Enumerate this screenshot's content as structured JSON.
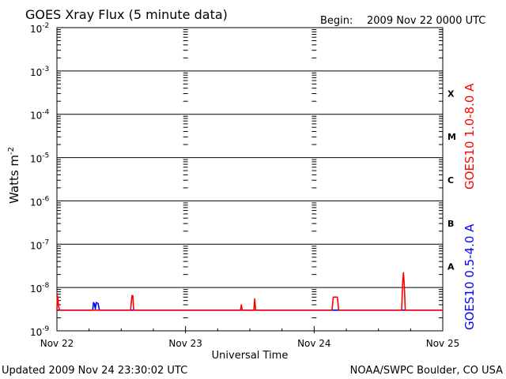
{
  "header": {
    "title": "GOES Xray Flux (5 minute data)",
    "begin_label": "Begin:",
    "begin_value": "2009 Nov 22 0000 UTC"
  },
  "footer": {
    "updated": "Updated 2009 Nov 24 23:30:02 UTC",
    "credit": "NOAA/SWPC Boulder, CO USA"
  },
  "colors": {
    "long_channel": "#ff0000",
    "short_channel": "#0000ff",
    "grid": "#000000",
    "background": "#ffffff"
  },
  "chart_data": {
    "type": "line",
    "title": "GOES Xray Flux (5 minute data)",
    "xlabel": "Universal Time",
    "ylabel": "Watts m-2",
    "ylabel_base": "Watts m",
    "ylabel_exp": "-2",
    "y_scale": "log",
    "ylim": [
      1e-09,
      0.01
    ],
    "y_ticks": [
      {
        "base": "10",
        "exp": "-2"
      },
      {
        "base": "10",
        "exp": "-3"
      },
      {
        "base": "10",
        "exp": "-4"
      },
      {
        "base": "10",
        "exp": "-5"
      },
      {
        "base": "10",
        "exp": "-6"
      },
      {
        "base": "10",
        "exp": "-7"
      },
      {
        "base": "10",
        "exp": "-8"
      },
      {
        "base": "10",
        "exp": "-9"
      }
    ],
    "x_ticks": [
      "Nov 22",
      "Nov 23",
      "Nov 24",
      "Nov 25"
    ],
    "xlim_days": [
      "2009-11-22",
      "2009-11-25"
    ],
    "flare_classes": [
      "X",
      "M",
      "C",
      "B",
      "A"
    ],
    "grid": true,
    "series": [
      {
        "name": "GOES10 1.0-8.0 A",
        "color": "#ff0000",
        "points": [
          [
            "2009-11-22 00:00",
            3e-09
          ],
          [
            "2009-11-22 00:05",
            6.5e-09
          ],
          [
            "2009-11-22 00:10",
            6e-09
          ],
          [
            "2009-11-22 00:20",
            3.5e-09
          ],
          [
            "2009-11-22 00:30",
            3e-09
          ],
          [
            "2009-11-22 13:45",
            3e-09
          ],
          [
            "2009-11-22 14:00",
            6.5e-09
          ],
          [
            "2009-11-22 14:10",
            6.5e-09
          ],
          [
            "2009-11-22 14:20",
            3e-09
          ],
          [
            "2009-11-23 10:15",
            3e-09
          ],
          [
            "2009-11-23 10:25",
            4e-09
          ],
          [
            "2009-11-23 10:35",
            3e-09
          ],
          [
            "2009-11-23 12:45",
            3e-09
          ],
          [
            "2009-11-23 12:55",
            5.5e-09
          ],
          [
            "2009-11-23 13:05",
            3e-09
          ],
          [
            "2009-11-24 03:20",
            3e-09
          ],
          [
            "2009-11-24 03:35",
            6e-09
          ],
          [
            "2009-11-24 04:20",
            6e-09
          ],
          [
            "2009-11-24 04:35",
            3e-09
          ],
          [
            "2009-11-24 16:20",
            3e-09
          ],
          [
            "2009-11-24 16:30",
            1.2e-08
          ],
          [
            "2009-11-24 16:40",
            2.2e-08
          ],
          [
            "2009-11-24 16:50",
            1.1e-08
          ],
          [
            "2009-11-24 17:00",
            3e-09
          ],
          [
            "2009-11-25 00:00",
            3e-09
          ]
        ]
      },
      {
        "name": "GOES10 0.5-4.0 A",
        "color": "#0000ff",
        "points": [
          [
            "2009-11-22 00:00",
            3e-09
          ],
          [
            "2009-11-22 06:40",
            3e-09
          ],
          [
            "2009-11-22 06:50",
            4.5e-09
          ],
          [
            "2009-11-22 07:00",
            4.2e-09
          ],
          [
            "2009-11-22 07:10",
            3.2e-09
          ],
          [
            "2009-11-22 07:20",
            4.5e-09
          ],
          [
            "2009-11-22 07:40",
            4.3e-09
          ],
          [
            "2009-11-22 07:55",
            3e-09
          ],
          [
            "2009-11-25 00:00",
            3e-09
          ]
        ]
      }
    ]
  }
}
